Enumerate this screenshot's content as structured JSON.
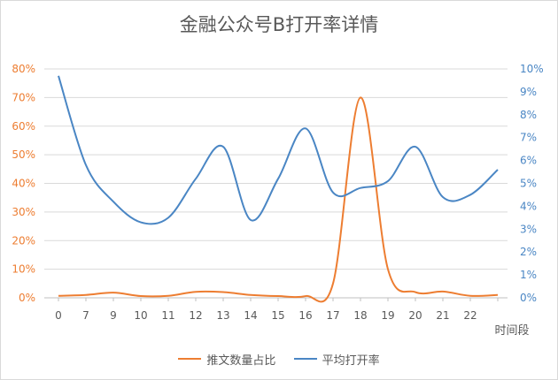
{
  "chart_data": {
    "type": "line",
    "title": "金融公众号B打开率详情",
    "xlabel": "时间段",
    "categories": [
      "0",
      "7",
      "9",
      "10",
      "11",
      "12",
      "13",
      "14",
      "15",
      "16",
      "17",
      "18",
      "19",
      "20",
      "21",
      "22",
      ""
    ],
    "y_left": {
      "ticks": [
        "0%",
        "10%",
        "20%",
        "30%",
        "40%",
        "50%",
        "60%",
        "70%",
        "80%"
      ],
      "range": [
        0,
        0.8
      ]
    },
    "y_right": {
      "ticks": [
        "0%",
        "1%",
        "2%",
        "3%",
        "4%",
        "5%",
        "6%",
        "7%",
        "8%",
        "9%",
        "10%"
      ],
      "range": [
        0,
        0.1
      ]
    },
    "series": [
      {
        "name": "推文数量占比",
        "axis": "left",
        "color": "#ed7d31",
        "values": [
          0.007,
          0.01,
          0.018,
          0.006,
          0.007,
          0.021,
          0.02,
          0.01,
          0.006,
          0.006,
          0.05,
          0.7,
          0.1,
          0.02,
          0.022,
          0.007,
          0.01
        ]
      },
      {
        "name": "平均打开率",
        "axis": "right",
        "color": "#4a86c4",
        "values": [
          0.097,
          0.058,
          0.042,
          0.033,
          0.035,
          0.052,
          0.066,
          0.034,
          0.052,
          0.074,
          0.046,
          0.048,
          0.051,
          0.066,
          0.044,
          0.045,
          0.056
        ]
      }
    ],
    "grid": true,
    "legend_position": "bottom"
  }
}
